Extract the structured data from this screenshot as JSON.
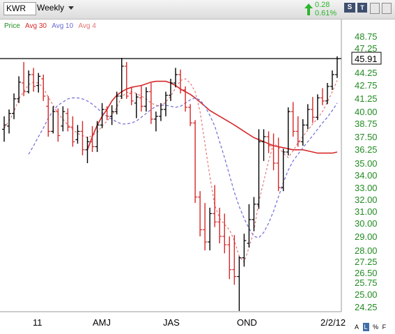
{
  "toolbar": {
    "symbol": "KWR",
    "period": "Weekly",
    "change_value": "0.28",
    "change_percent": "0.61%",
    "colors": {
      "up": "#2db52d",
      "bar": "#dcdcdc"
    },
    "icons": [
      "up-arrow-icon",
      "dropdown-caret-icon",
      "save-icon",
      "window-icon"
    ],
    "btn_s": "S",
    "btn_t": "T"
  },
  "legend": {
    "price": "Price",
    "avg30": "Avg 30",
    "avg10": "Avg 10",
    "avg4": "Avg 4"
  },
  "footer": {
    "a_label": "A",
    "l_label": "L",
    "pct_label": "%",
    "f_label": "F"
  },
  "chart_data": {
    "type": "ohlc",
    "y_ticks": [
      "48.75",
      "47.25",
      "45.91",
      "44.25",
      "42.75",
      "41.25",
      "40.00",
      "38.75",
      "37.50",
      "36.25",
      "35.00",
      "34.00",
      "33.00",
      "32.00",
      "31.00",
      "30.00",
      "29.00",
      "28.00",
      "27.25",
      "26.50",
      "25.75",
      "25.00",
      "24.25"
    ],
    "last_price": "45.91",
    "reference_line": 45.91,
    "x_labels": [
      "11",
      "AMJ",
      "JAS",
      "OND",
      "2/2/12"
    ],
    "colors": {
      "up": "#000000",
      "down": "#d62728",
      "avg30": "#d62728",
      "avg10": "#6b6bd6",
      "avg4": "#e57373"
    },
    "bars": [
      {
        "o": 38.2,
        "h": 39.5,
        "l": 37.0,
        "c": 38.6,
        "d": "up"
      },
      {
        "o": 38.5,
        "h": 40.2,
        "l": 37.8,
        "c": 39.8,
        "d": "up"
      },
      {
        "o": 39.8,
        "h": 41.8,
        "l": 39.2,
        "c": 41.2,
        "d": "up"
      },
      {
        "o": 41.2,
        "h": 43.8,
        "l": 40.8,
        "c": 43.1,
        "d": "up"
      },
      {
        "o": 43.0,
        "h": 45.5,
        "l": 41.5,
        "c": 42.0,
        "d": "down"
      },
      {
        "o": 42.0,
        "h": 44.5,
        "l": 41.8,
        "c": 44.0,
        "d": "up"
      },
      {
        "o": 44.0,
        "h": 44.8,
        "l": 42.0,
        "c": 42.6,
        "d": "down"
      },
      {
        "o": 42.7,
        "h": 44.2,
        "l": 41.9,
        "c": 43.8,
        "d": "up"
      },
      {
        "o": 43.5,
        "h": 44.0,
        "l": 41.0,
        "c": 41.5,
        "d": "down"
      },
      {
        "o": 40.5,
        "h": 41.5,
        "l": 37.5,
        "c": 38.0,
        "d": "down"
      },
      {
        "o": 38.0,
        "h": 40.5,
        "l": 37.8,
        "c": 40.0,
        "d": "up"
      },
      {
        "o": 40.0,
        "h": 40.3,
        "l": 37.0,
        "c": 37.6,
        "d": "down"
      },
      {
        "o": 38.5,
        "h": 40.5,
        "l": 38.0,
        "c": 40.0,
        "d": "up"
      },
      {
        "o": 39.8,
        "h": 40.3,
        "l": 38.0,
        "c": 38.4,
        "d": "down"
      },
      {
        "o": 38.4,
        "h": 39.5,
        "l": 36.5,
        "c": 37.0,
        "d": "down"
      },
      {
        "o": 37.2,
        "h": 38.6,
        "l": 36.8,
        "c": 38.0,
        "d": "up"
      },
      {
        "o": 38.0,
        "h": 39.0,
        "l": 35.7,
        "c": 36.2,
        "d": "down"
      },
      {
        "o": 36.2,
        "h": 37.5,
        "l": 35.0,
        "c": 37.0,
        "d": "up"
      },
      {
        "o": 37.0,
        "h": 38.5,
        "l": 36.0,
        "c": 36.5,
        "d": "down"
      },
      {
        "o": 36.5,
        "h": 39.0,
        "l": 36.0,
        "c": 38.6,
        "d": "up"
      },
      {
        "o": 38.6,
        "h": 40.8,
        "l": 38.3,
        "c": 40.2,
        "d": "up"
      },
      {
        "o": 40.2,
        "h": 40.5,
        "l": 39.1,
        "c": 39.5,
        "d": "down"
      },
      {
        "o": 39.5,
        "h": 40.6,
        "l": 38.6,
        "c": 40.0,
        "d": "up"
      },
      {
        "o": 40.0,
        "h": 42.0,
        "l": 39.7,
        "c": 41.5,
        "d": "up"
      },
      {
        "o": 41.5,
        "h": 46.0,
        "l": 41.2,
        "c": 45.0,
        "d": "up"
      },
      {
        "o": 45.0,
        "h": 45.5,
        "l": 41.2,
        "c": 41.5,
        "d": "down"
      },
      {
        "o": 41.8,
        "h": 42.5,
        "l": 40.6,
        "c": 41.0,
        "d": "down"
      },
      {
        "o": 40.8,
        "h": 41.8,
        "l": 39.3,
        "c": 41.4,
        "d": "up"
      },
      {
        "o": 41.3,
        "h": 42.7,
        "l": 40.0,
        "c": 40.5,
        "d": "down"
      },
      {
        "o": 40.5,
        "h": 42.5,
        "l": 40.0,
        "c": 42.0,
        "d": "up"
      },
      {
        "o": 42.0,
        "h": 43.0,
        "l": 38.7,
        "c": 39.2,
        "d": "down"
      },
      {
        "o": 39.2,
        "h": 40.0,
        "l": 38.0,
        "c": 39.5,
        "d": "up"
      },
      {
        "o": 39.5,
        "h": 40.8,
        "l": 39.0,
        "c": 40.2,
        "d": "up"
      },
      {
        "o": 40.2,
        "h": 42.0,
        "l": 39.5,
        "c": 41.6,
        "d": "up"
      },
      {
        "o": 41.6,
        "h": 43.5,
        "l": 41.0,
        "c": 43.0,
        "d": "up"
      },
      {
        "o": 43.0,
        "h": 44.8,
        "l": 42.5,
        "c": 44.0,
        "d": "up"
      },
      {
        "o": 44.0,
        "h": 44.6,
        "l": 41.8,
        "c": 42.2,
        "d": "down"
      },
      {
        "o": 42.2,
        "h": 42.6,
        "l": 40.0,
        "c": 40.4,
        "d": "down"
      },
      {
        "o": 40.4,
        "h": 40.7,
        "l": 38.5,
        "c": 38.8,
        "d": "down"
      },
      {
        "o": 38.8,
        "h": 39.1,
        "l": 31.7,
        "c": 32.2,
        "d": "down"
      },
      {
        "o": 32.2,
        "h": 32.7,
        "l": 29.0,
        "c": 29.5,
        "d": "down"
      },
      {
        "o": 29.5,
        "h": 31.7,
        "l": 28.0,
        "c": 28.6,
        "d": "down"
      },
      {
        "o": 28.6,
        "h": 31.3,
        "l": 28.0,
        "c": 30.8,
        "d": "up"
      },
      {
        "o": 30.8,
        "h": 33.2,
        "l": 29.7,
        "c": 30.1,
        "d": "down"
      },
      {
        "o": 30.1,
        "h": 31.3,
        "l": 28.5,
        "c": 29.0,
        "d": "down"
      },
      {
        "o": 29.0,
        "h": 30.8,
        "l": 27.8,
        "c": 28.4,
        "d": "down"
      },
      {
        "o": 28.4,
        "h": 29.0,
        "l": 26.0,
        "c": 26.7,
        "d": "down"
      },
      {
        "o": 26.7,
        "h": 29.1,
        "l": 25.6,
        "c": 26.2,
        "d": "down"
      },
      {
        "o": 26.2,
        "h": 27.6,
        "l": 24.0,
        "c": 27.5,
        "d": "up"
      },
      {
        "o": 27.5,
        "h": 29.2,
        "l": 26.9,
        "c": 28.7,
        "d": "up"
      },
      {
        "o": 28.5,
        "h": 31.6,
        "l": 28.2,
        "c": 30.3,
        "d": "up"
      },
      {
        "o": 30.3,
        "h": 32.2,
        "l": 29.4,
        "c": 31.6,
        "d": "up"
      },
      {
        "o": 31.6,
        "h": 38.2,
        "l": 31.2,
        "c": 37.0,
        "d": "up"
      },
      {
        "o": 37.0,
        "h": 38.2,
        "l": 35.2,
        "c": 37.5,
        "d": "up"
      },
      {
        "o": 37.5,
        "h": 38.0,
        "l": 35.9,
        "c": 36.6,
        "d": "down"
      },
      {
        "o": 36.6,
        "h": 37.8,
        "l": 34.4,
        "c": 35.0,
        "d": "down"
      },
      {
        "o": 35.0,
        "h": 37.4,
        "l": 32.7,
        "c": 33.0,
        "d": "down"
      },
      {
        "o": 33.0,
        "h": 36.3,
        "l": 32.7,
        "c": 36.0,
        "d": "up"
      },
      {
        "o": 36.0,
        "h": 40.4,
        "l": 35.7,
        "c": 40.0,
        "d": "up"
      },
      {
        "o": 40.0,
        "h": 40.9,
        "l": 37.5,
        "c": 38.0,
        "d": "down"
      },
      {
        "o": 38.0,
        "h": 39.5,
        "l": 36.5,
        "c": 37.0,
        "d": "down"
      },
      {
        "o": 37.0,
        "h": 39.2,
        "l": 36.6,
        "c": 38.6,
        "d": "up"
      },
      {
        "o": 38.6,
        "h": 40.7,
        "l": 38.2,
        "c": 40.2,
        "d": "up"
      },
      {
        "o": 40.2,
        "h": 41.4,
        "l": 38.8,
        "c": 39.4,
        "d": "down"
      },
      {
        "o": 39.4,
        "h": 41.7,
        "l": 39.1,
        "c": 41.3,
        "d": "up"
      },
      {
        "o": 41.3,
        "h": 42.4,
        "l": 40.6,
        "c": 41.0,
        "d": "down"
      },
      {
        "o": 41.0,
        "h": 43.0,
        "l": 40.7,
        "c": 42.6,
        "d": "up"
      },
      {
        "o": 42.6,
        "h": 44.5,
        "l": 42.2,
        "c": 44.0,
        "d": "up"
      },
      {
        "o": 44.0,
        "h": 46.2,
        "l": 43.6,
        "c": 45.9,
        "d": "up"
      }
    ],
    "avg30": [
      36.2,
      37.5,
      38.6,
      39.5,
      40.2,
      41.0,
      41.6,
      42.0,
      42.3,
      42.5,
      42.6,
      42.7,
      42.9,
      43.1,
      43.2,
      43.2,
      43.2,
      43.0,
      42.7,
      42.3,
      42.0,
      41.7,
      41.3,
      40.9,
      40.5,
      40.1,
      39.8,
      39.5,
      39.2,
      38.9,
      38.6,
      38.3,
      38.0,
      37.7,
      37.4,
      37.2,
      37.0,
      36.8,
      36.6,
      36.5,
      36.4,
      36.3,
      36.2,
      36.2,
      36.2,
      36.1,
      36.0,
      35.9,
      35.9,
      35.9,
      35.9,
      36.0
    ],
    "avg10": [
      35.8,
      36.6,
      37.5,
      38.3,
      39.3,
      40.1,
      40.6,
      40.9,
      41.2,
      41.3,
      41.3,
      41.2,
      41.0,
      40.7,
      40.3,
      39.9,
      39.5,
      39.2,
      38.9,
      38.7,
      38.7,
      38.8,
      39.0,
      39.4,
      39.8,
      40.2,
      40.5,
      40.6,
      40.6,
      40.5,
      40.4,
      40.5,
      40.8,
      41.1,
      41.3,
      41.1,
      40.5,
      39.6,
      38.5,
      37.0,
      35.5,
      34.0,
      32.6,
      31.4,
      30.4,
      29.6,
      29.0,
      28.9,
      29.3,
      30.0,
      31.0,
      32.2,
      33.4,
      34.4,
      35.2,
      35.8,
      36.4,
      37.0,
      37.6,
      38.2,
      38.8,
      39.4,
      40.1,
      40.8
    ],
    "avg4": [
      38.3,
      39.0,
      40.0,
      41.2,
      42.0,
      42.8,
      43.1,
      43.0,
      42.4,
      41.4,
      40.6,
      39.8,
      39.2,
      38.6,
      38.2,
      37.8,
      37.6,
      37.4,
      37.6,
      37.9,
      38.5,
      39.0,
      39.6,
      40.4,
      41.4,
      41.9,
      42.0,
      41.8,
      41.5,
      41.2,
      40.8,
      40.6,
      40.5,
      40.9,
      41.5,
      42.4,
      43.3,
      43.5,
      43.0,
      42.0,
      40.0,
      36.8,
      33.9,
      31.5,
      30.4,
      29.9,
      29.5,
      28.7,
      27.6,
      27.2,
      28.2,
      29.4,
      31.8,
      33.5,
      35.2,
      36.8,
      36.5,
      35.9,
      35.5,
      36.1,
      36.9,
      37.5,
      38.1,
      38.7,
      39.3,
      40.0,
      40.9,
      42.0,
      43.3
    ]
  }
}
